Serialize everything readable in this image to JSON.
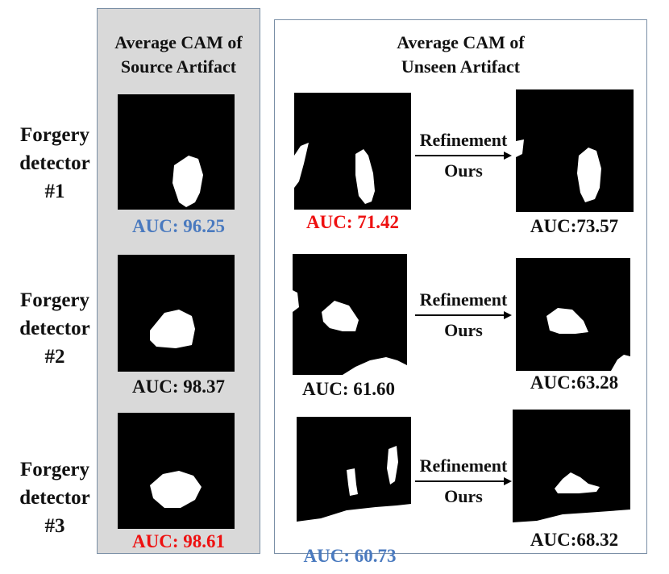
{
  "headers": {
    "source": [
      "Average CAM of",
      "Source Artifact"
    ],
    "unseen": [
      "Average CAM of",
      "Unseen Artifact"
    ]
  },
  "rows": [
    {
      "label": [
        "Forgery",
        "detector",
        "#1"
      ],
      "source_auc": "AUC: 96.25",
      "unseen_auc": "AUC: 71.42",
      "ours_auc": "AUC:73.57",
      "refine_top": "Refinement",
      "refine_bottom": "Ours"
    },
    {
      "label": [
        "Forgery",
        "detector",
        "#2"
      ],
      "source_auc": "AUC: 98.37",
      "unseen_auc": "AUC: 61.60",
      "ours_auc": "AUC:63.28",
      "refine_top": "Refinement",
      "refine_bottom": "Ours"
    },
    {
      "label": [
        "Forgery",
        "detector",
        "#3"
      ],
      "source_auc": "AUC: 98.61",
      "unseen_auc": "AUC: 60.73",
      "ours_auc": "AUC:68.32",
      "refine_top": "Refinement",
      "refine_bottom": "Ours"
    }
  ],
  "colors": {
    "blue": "#4a7abf",
    "red": "#ee1111",
    "black": "#111111",
    "panel_gray": "#d9d9d9",
    "panel_border": "#7a8fa6"
  },
  "auc_colors": {
    "r1_source": "blue",
    "r1_unseen": "red",
    "r1_ours": "black",
    "r2_source": "black",
    "r2_unseen": "black",
    "r2_ours": "black",
    "r3_source": "red",
    "r3_unseen": "blue",
    "r3_ours": "black"
  }
}
